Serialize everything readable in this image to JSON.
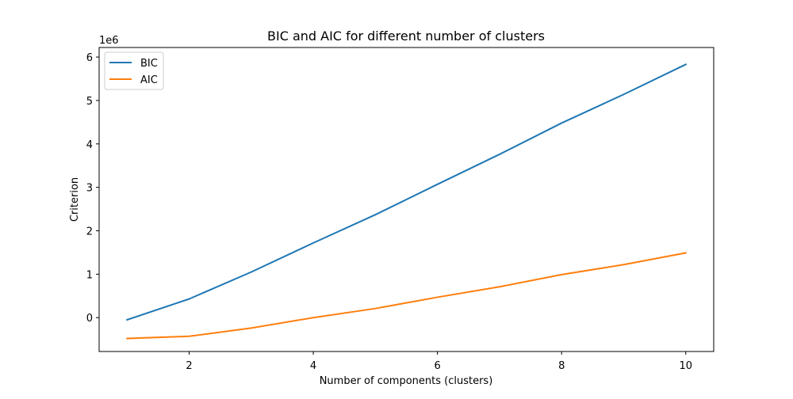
{
  "chart_data": {
    "type": "line",
    "title": "BIC and AIC for different number of clusters",
    "xlabel": "Number of components (clusters)",
    "ylabel": "Criterion",
    "y_offset_label": "1e6",
    "x": [
      1,
      2,
      3,
      4,
      5,
      6,
      7,
      8,
      9,
      10
    ],
    "xlim": [
      0.55,
      10.45
    ],
    "ylim": [
      -0.78,
      6.22
    ],
    "x_ticks": [
      2,
      4,
      6,
      8,
      10
    ],
    "y_ticks": [
      0,
      1,
      2,
      3,
      4,
      5,
      6
    ],
    "grid": false,
    "legend_position": "top-left",
    "series": [
      {
        "name": "BIC",
        "color": "#1f77b4",
        "values": [
          -0.05,
          0.43,
          1.05,
          1.72,
          2.37,
          3.07,
          3.76,
          4.48,
          5.14,
          5.83
        ]
      },
      {
        "name": "AIC",
        "color": "#ff7f0e",
        "values": [
          -0.48,
          -0.43,
          -0.24,
          0.0,
          0.21,
          0.47,
          0.71,
          0.99,
          1.22,
          1.49
        ]
      }
    ]
  }
}
